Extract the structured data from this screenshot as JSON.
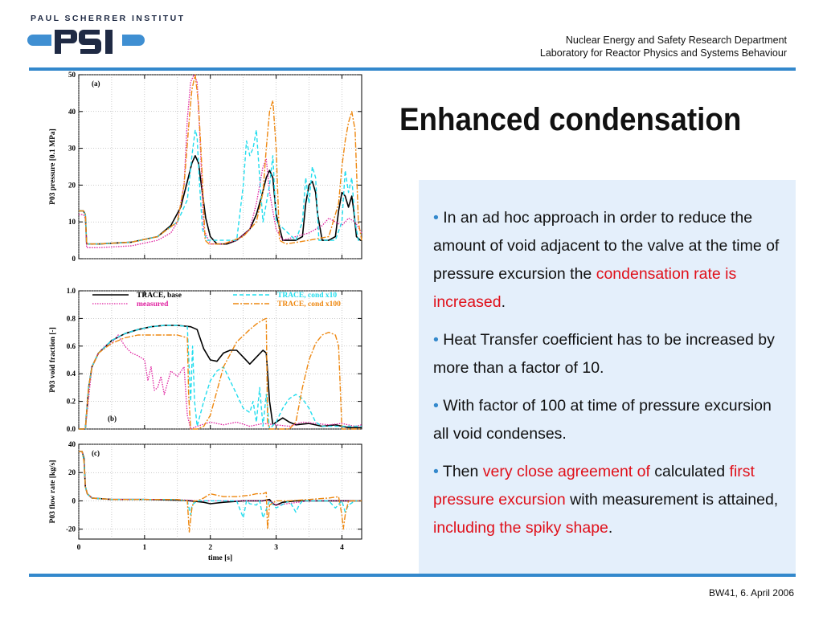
{
  "header": {
    "institute": "PAUL SCHERRER INSTITUT",
    "logo_text": "PSI",
    "department": "Nuclear Energy and Safety Research Department",
    "laboratory": "Laboratory for Reactor Physics and Systems Behaviour"
  },
  "slide": {
    "title": "Enhanced condensation",
    "footer": "BW41, 6. April 2006"
  },
  "bullets": [
    {
      "prefix": "In an ad hoc approach in order to reduce the amount of void adjacent to the valve at the time of pressure excursion the ",
      "highlight": "condensation rate is increased",
      "suffix": "."
    },
    {
      "text": "Heat Transfer coefficient has to be increased by more than a factor of 10."
    },
    {
      "text": "With factor of 100 at time of pressure excursion all void condenses."
    },
    {
      "p1": "Then ",
      "h1": "very close agreement of",
      "p2": " calculated ",
      "h2": "first pressure excursion",
      "p3": " with measurement is attained, ",
      "h3": "including the spiky shape",
      "p4": "."
    }
  ],
  "colors": {
    "accent": "#3388cc",
    "highlight": "#e0101a",
    "panel_bg": "#e4effb",
    "base": "#000000",
    "measured": "#e020a0",
    "cond10": "#22ddee",
    "cond100": "#ee8811"
  },
  "chart_data": [
    {
      "type": "line",
      "panel": "(a)",
      "ylabel": "P03 pressure [0.1 MPa]",
      "xlim": [
        0,
        4.3
      ],
      "ylim": [
        0,
        50
      ],
      "yticks": [
        0,
        10,
        20,
        30,
        40,
        50
      ],
      "series": [
        {
          "name": "TRACE, base",
          "x": [
            0,
            0.07,
            0.1,
            0.12,
            0.3,
            0.8,
            1.2,
            1.4,
            1.55,
            1.65,
            1.72,
            1.77,
            1.82,
            1.87,
            1.93,
            2.0,
            2.1,
            2.25,
            2.4,
            2.6,
            2.7,
            2.78,
            2.85,
            2.9,
            2.95,
            3.0,
            3.1,
            3.3,
            3.4,
            3.45,
            3.5,
            3.55,
            3.6,
            3.63,
            3.7,
            3.8,
            3.9,
            3.95,
            4.0,
            4.05,
            4.1,
            4.15,
            4.18,
            4.22,
            4.28,
            4.3
          ],
          "y": [
            13,
            13,
            12,
            4,
            4,
            4.5,
            6,
            9,
            14,
            21,
            26,
            28,
            26,
            19,
            11,
            6,
            4,
            4,
            5,
            8,
            12,
            17,
            22,
            24,
            22,
            12,
            5,
            5,
            6,
            15,
            20,
            21,
            18,
            12,
            5,
            5,
            6,
            13,
            18,
            17,
            14,
            17,
            13,
            6,
            5,
            5
          ]
        },
        {
          "name": "measured",
          "x": [
            0,
            0.07,
            0.1,
            0.12,
            0.3,
            0.8,
            1.2,
            1.4,
            1.5,
            1.6,
            1.65,
            1.7,
            1.75,
            1.8,
            1.85,
            1.9,
            2.0,
            2.2,
            2.4,
            2.6,
            2.7,
            2.8,
            2.85,
            2.9,
            3.0,
            3.1,
            3.3,
            3.5,
            3.7,
            3.8,
            3.9,
            4.0,
            4.1,
            4.2,
            4.3
          ],
          "y": [
            12,
            12,
            11,
            3,
            3,
            3.5,
            5,
            7,
            10,
            20,
            38,
            48,
            50,
            48,
            30,
            8,
            4,
            4,
            5,
            8,
            15,
            25,
            27,
            18,
            8,
            5,
            6,
            7,
            9,
            11,
            10,
            9,
            11,
            10,
            7
          ]
        },
        {
          "name": "TRACE, cond x10",
          "x": [
            0,
            0.07,
            0.1,
            0.12,
            0.3,
            0.8,
            1.2,
            1.5,
            1.65,
            1.72,
            1.77,
            1.8,
            1.83,
            1.88,
            1.95,
            2.1,
            2.4,
            2.5,
            2.55,
            2.6,
            2.65,
            2.7,
            2.75,
            2.8,
            2.9,
            2.95,
            3.0,
            3.3,
            3.4,
            3.45,
            3.5,
            3.55,
            3.6,
            3.65,
            3.7,
            3.9,
            4.0,
            4.05,
            4.1,
            4.15,
            4.2,
            4.25,
            4.3
          ],
          "y": [
            13,
            13,
            12,
            4,
            4,
            4.5,
            6,
            10,
            16,
            28,
            35,
            33,
            22,
            8,
            5,
            5,
            5,
            20,
            32,
            28,
            30,
            35,
            22,
            10,
            20,
            28,
            10,
            5,
            10,
            22,
            15,
            25,
            22,
            5,
            5,
            5,
            10,
            24,
            18,
            22,
            10,
            5,
            5
          ]
        },
        {
          "name": "TRACE, cond x100",
          "x": [
            0,
            0.07,
            0.1,
            0.12,
            0.3,
            0.8,
            1.2,
            1.5,
            1.6,
            1.68,
            1.72,
            1.77,
            1.82,
            1.87,
            1.92,
            1.98,
            2.2,
            2.5,
            2.7,
            2.8,
            2.85,
            2.9,
            2.95,
            3.0,
            3.05,
            3.15,
            3.5,
            3.8,
            3.95,
            4.0,
            4.05,
            4.1,
            4.15,
            4.2,
            4.25,
            4.3
          ],
          "y": [
            13,
            13,
            12,
            4,
            4,
            4.5,
            6,
            10,
            20,
            38,
            46,
            50,
            42,
            25,
            5,
            4,
            4,
            6,
            10,
            18,
            30,
            40,
            43,
            30,
            5,
            4,
            5,
            6,
            15,
            25,
            32,
            37,
            40,
            35,
            10,
            5
          ]
        }
      ]
    },
    {
      "type": "line",
      "panel": "(b)",
      "ylabel": "P03 void fraction [-]",
      "xlim": [
        0,
        4.3
      ],
      "ylim": [
        0,
        1.0
      ],
      "yticks": [
        0.0,
        0.2,
        0.4,
        0.6,
        0.8,
        1.0
      ],
      "legend": [
        "TRACE, base",
        "measured",
        "TRACE, cond x10",
        "TRACE, cond x100"
      ],
      "series": [
        {
          "name": "TRACE, base",
          "x": [
            0,
            0.1,
            0.15,
            0.2,
            0.3,
            0.5,
            0.7,
            0.9,
            1.1,
            1.3,
            1.5,
            1.7,
            1.8,
            1.9,
            2.0,
            2.1,
            2.2,
            2.3,
            2.4,
            2.5,
            2.6,
            2.7,
            2.8,
            2.85,
            2.9,
            2.95,
            3.0,
            3.1,
            3.2,
            3.3,
            3.5,
            3.7,
            3.9,
            4.1,
            4.3
          ],
          "y": [
            0,
            0,
            0.3,
            0.45,
            0.55,
            0.64,
            0.69,
            0.72,
            0.74,
            0.75,
            0.75,
            0.74,
            0.72,
            0.58,
            0.5,
            0.49,
            0.55,
            0.57,
            0.57,
            0.52,
            0.47,
            0.52,
            0.57,
            0.55,
            0.2,
            0.03,
            0.05,
            0.08,
            0.05,
            0.03,
            0.04,
            0.02,
            0.03,
            0.01,
            0.01
          ]
        },
        {
          "name": "measured",
          "x": [
            0,
            0.1,
            0.2,
            0.3,
            0.4,
            0.5,
            0.6,
            0.7,
            0.8,
            0.9,
            1.0,
            1.05,
            1.1,
            1.15,
            1.2,
            1.25,
            1.3,
            1.4,
            1.5,
            1.6,
            1.65,
            1.7,
            1.8,
            2.0,
            2.2,
            2.4,
            2.6,
            2.8,
            3.0,
            3.2,
            3.4,
            3.6,
            3.8,
            4.0,
            4.2,
            4.3
          ],
          "y": [
            0,
            0,
            0.45,
            0.55,
            0.6,
            0.62,
            0.68,
            0.6,
            0.55,
            0.53,
            0.5,
            0.35,
            0.45,
            0.28,
            0.3,
            0.38,
            0.25,
            0.42,
            0.38,
            0.45,
            0.1,
            0.0,
            0.02,
            0.05,
            0.03,
            0.05,
            0.02,
            0.04,
            0.03,
            0.02,
            0.05,
            0.04,
            0.03,
            0.04,
            0.02,
            0.03
          ]
        },
        {
          "name": "TRACE, cond x10",
          "x": [
            0,
            0.1,
            0.15,
            0.2,
            0.3,
            0.5,
            0.7,
            0.9,
            1.1,
            1.3,
            1.5,
            1.65,
            1.7,
            1.73,
            1.76,
            1.8,
            1.9,
            2.0,
            2.1,
            2.2,
            2.3,
            2.4,
            2.5,
            2.6,
            2.65,
            2.7,
            2.75,
            2.8,
            2.85,
            2.9,
            3.0,
            3.1,
            3.2,
            3.3,
            3.4,
            3.5,
            3.6,
            3.7,
            3.9,
            4.1,
            4.3
          ],
          "y": [
            0,
            0,
            0.3,
            0.45,
            0.55,
            0.64,
            0.69,
            0.72,
            0.74,
            0.75,
            0.75,
            0.74,
            0.2,
            0.6,
            0.2,
            0.02,
            0.2,
            0.35,
            0.42,
            0.45,
            0.35,
            0.25,
            0.15,
            0.12,
            0.2,
            0.05,
            0.3,
            0.02,
            0.25,
            0.0,
            0.05,
            0.15,
            0.22,
            0.25,
            0.22,
            0.15,
            0.05,
            0.02,
            0.02,
            0.02,
            0.02
          ]
        },
        {
          "name": "TRACE, cond x100",
          "x": [
            0,
            0.1,
            0.15,
            0.2,
            0.3,
            0.5,
            0.7,
            0.9,
            1.1,
            1.3,
            1.5,
            1.65,
            1.67,
            1.7,
            1.72,
            1.8,
            1.9,
            2.0,
            2.2,
            2.4,
            2.6,
            2.7,
            2.8,
            2.85,
            2.87,
            2.9,
            3.0,
            3.1,
            3.2,
            3.3,
            3.4,
            3.5,
            3.6,
            3.7,
            3.8,
            3.9,
            3.95,
            4.0,
            4.1,
            4.2,
            4.3
          ],
          "y": [
            0,
            0,
            0.3,
            0.45,
            0.55,
            0.62,
            0.66,
            0.68,
            0.68,
            0.68,
            0.68,
            0.66,
            0.25,
            0.0,
            0.0,
            0.0,
            0.02,
            0.1,
            0.45,
            0.63,
            0.72,
            0.76,
            0.79,
            0.8,
            0.05,
            0.0,
            0.0,
            0.0,
            0.0,
            0.05,
            0.3,
            0.5,
            0.62,
            0.68,
            0.7,
            0.68,
            0.6,
            0.0,
            0.0,
            0.0,
            0.0
          ]
        }
      ]
    },
    {
      "type": "line",
      "panel": "(c)",
      "ylabel": "P03 flow rate [kg/s]",
      "xlabel": "time [s]",
      "xlim": [
        0,
        4.3
      ],
      "ylim": [
        -27,
        40
      ],
      "xticks": [
        0,
        1,
        2,
        3,
        4
      ],
      "yticks": [
        -20,
        0,
        20,
        40
      ],
      "series": [
        {
          "name": "TRACE, base",
          "x": [
            0,
            0.05,
            0.08,
            0.1,
            0.13,
            0.2,
            0.5,
            1.0,
            1.5,
            1.7,
            1.9,
            2.0,
            2.2,
            2.5,
            2.8,
            2.9,
            2.95,
            3.0,
            3.1,
            3.3,
            3.5,
            3.7,
            3.9,
            4.1,
            4.3
          ],
          "y": [
            35,
            35,
            30,
            10,
            5,
            2,
            1,
            1,
            0.5,
            0,
            -1,
            -2,
            -1,
            0,
            0,
            1,
            -2,
            -3,
            -1,
            0,
            0,
            0,
            0,
            0,
            0
          ]
        },
        {
          "name": "measured",
          "x": [
            0,
            0.05,
            0.08,
            0.1,
            0.13,
            0.2,
            0.5,
            1.0,
            1.5,
            1.8,
            2.0,
            2.5,
            2.9,
            3.0,
            3.5,
            4.0,
            4.3
          ],
          "y": [
            35,
            35,
            28,
            10,
            5,
            2,
            1,
            1,
            1,
            0,
            0,
            0,
            0,
            -3,
            0,
            0,
            0
          ]
        },
        {
          "name": "TRACE, cond x10",
          "x": [
            0,
            0.05,
            0.08,
            0.1,
            0.13,
            0.2,
            0.5,
            1.0,
            1.5,
            1.65,
            1.7,
            1.72,
            1.8,
            2.0,
            2.4,
            2.5,
            2.55,
            2.6,
            2.7,
            2.75,
            2.8,
            2.9,
            3.0,
            3.2,
            3.3,
            3.35,
            3.4,
            3.5,
            3.8,
            3.9,
            4.0,
            4.05,
            4.1,
            4.2,
            4.3
          ],
          "y": [
            35,
            35,
            28,
            10,
            5,
            2,
            1,
            1,
            1,
            0,
            -10,
            -3,
            0,
            0,
            0,
            -12,
            0,
            -2,
            -3,
            0,
            -12,
            0,
            -5,
            0,
            -8,
            -3,
            0,
            0,
            0,
            -5,
            0,
            -8,
            -3,
            0,
            0
          ]
        },
        {
          "name": "TRACE, cond x100",
          "x": [
            0,
            0.05,
            0.08,
            0.1,
            0.13,
            0.2,
            0.5,
            1.0,
            1.5,
            1.65,
            1.68,
            1.72,
            1.75,
            1.8,
            1.9,
            2.0,
            2.2,
            2.4,
            2.6,
            2.7,
            2.8,
            2.85,
            2.87,
            2.9,
            3.0,
            3.2,
            3.5,
            3.8,
            3.95,
            4.0,
            4.02,
            4.05,
            4.1,
            4.3
          ],
          "y": [
            35,
            35,
            28,
            10,
            5,
            2,
            1,
            1,
            1,
            0,
            -22,
            -5,
            0,
            0,
            2,
            5,
            3,
            3,
            4,
            5,
            5,
            6,
            -20,
            -3,
            0,
            0,
            1,
            2,
            3,
            -10,
            -20,
            -10,
            0,
            0
          ]
        }
      ]
    }
  ]
}
